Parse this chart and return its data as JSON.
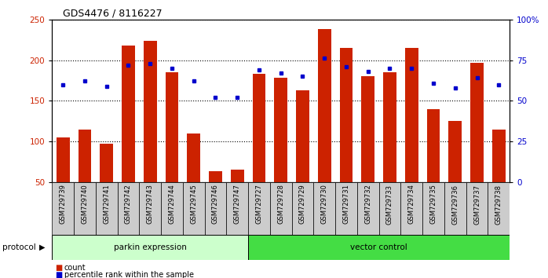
{
  "title": "GDS4476 / 8116227",
  "samples": [
    "GSM729739",
    "GSM729740",
    "GSM729741",
    "GSM729742",
    "GSM729743",
    "GSM729744",
    "GSM729745",
    "GSM729746",
    "GSM729747",
    "GSM729727",
    "GSM729728",
    "GSM729729",
    "GSM729730",
    "GSM729731",
    "GSM729732",
    "GSM729733",
    "GSM729734",
    "GSM729735",
    "GSM729736",
    "GSM729737",
    "GSM729738"
  ],
  "count_values": [
    105,
    115,
    97,
    218,
    224,
    185,
    110,
    63,
    65,
    183,
    178,
    163,
    238,
    215,
    180,
    185,
    215,
    140,
    125,
    197,
    115
  ],
  "percentile_values": [
    60,
    62,
    59,
    72,
    73,
    70,
    62,
    52,
    52,
    69,
    67,
    65,
    76,
    71,
    68,
    70,
    70,
    61,
    58,
    64,
    60
  ],
  "group1_label": "parkin expression",
  "group2_label": "vector control",
  "group1_count": 9,
  "group2_count": 12,
  "protocol_label": "protocol",
  "legend_count_label": "count",
  "legend_percentile_label": "percentile rank within the sample",
  "bar_color": "#cc2200",
  "dot_color": "#0000cc",
  "group1_bg": "#ccffcc",
  "group2_bg": "#44dd44",
  "sample_label_bg": "#cccccc",
  "ylim_left": [
    50,
    250
  ],
  "ylim_right": [
    0,
    100
  ],
  "yticks_left": [
    50,
    100,
    150,
    200,
    250
  ],
  "yticks_right": [
    0,
    25,
    50,
    75,
    100
  ],
  "ytick_right_labels": [
    "0",
    "25",
    "50",
    "75",
    "100%"
  ]
}
